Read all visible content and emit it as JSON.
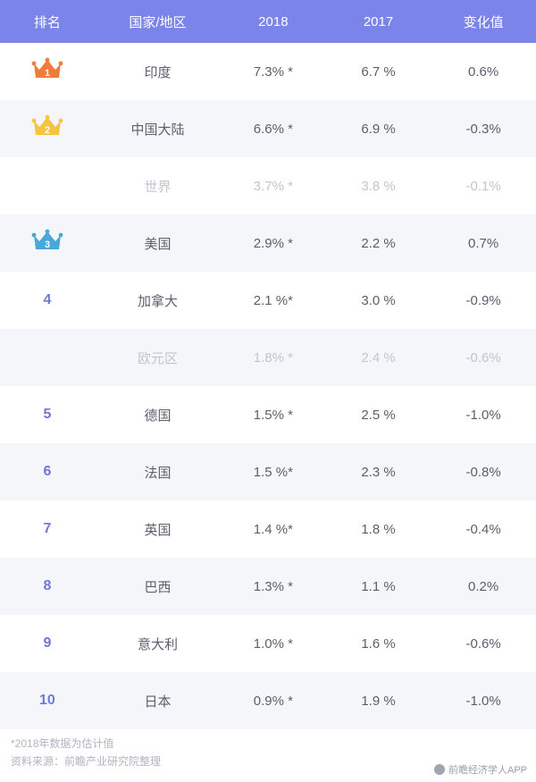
{
  "header": {
    "background_color": "#7b84e8",
    "text_color": "#ffffff",
    "columns": [
      "排名",
      "国家/地区",
      "2018",
      "2017",
      "变化值"
    ]
  },
  "row_style": {
    "even_bg": "#ffffff",
    "odd_bg": "#f5f6fa",
    "text_color": "#5a5f6d",
    "muted_text_color": "#c1c5cf",
    "rank_color": "#6f78d8"
  },
  "crown_colors": {
    "1": "#f07b3c",
    "2": "#f5c542",
    "3": "#4aa8d8"
  },
  "rows": [
    {
      "rank": "1",
      "rank_type": "crown",
      "region": "印度",
      "v2018": "7.3% *",
      "v2017": "6.7 %",
      "delta": "0.6%",
      "muted": false
    },
    {
      "rank": "2",
      "rank_type": "crown",
      "region": "中国大陆",
      "v2018": "6.6% *",
      "v2017": "6.9 %",
      "delta": "-0.3%",
      "muted": false
    },
    {
      "rank": "",
      "rank_type": "none",
      "region": "世界",
      "v2018": "3.7% *",
      "v2017": "3.8 %",
      "delta": "-0.1%",
      "muted": true
    },
    {
      "rank": "3",
      "rank_type": "crown",
      "region": "美国",
      "v2018": "2.9% *",
      "v2017": "2.2 %",
      "delta": "0.7%",
      "muted": false
    },
    {
      "rank": "4",
      "rank_type": "num",
      "region": "加拿大",
      "v2018": "2.1 %*",
      "v2017": "3.0 %",
      "delta": "-0.9%",
      "muted": false
    },
    {
      "rank": "",
      "rank_type": "none",
      "region": "欧元区",
      "v2018": "1.8% *",
      "v2017": "2.4 %",
      "delta": "-0.6%",
      "muted": true
    },
    {
      "rank": "5",
      "rank_type": "num",
      "region": "德国",
      "v2018": "1.5% *",
      "v2017": "2.5 %",
      "delta": "-1.0%",
      "muted": false
    },
    {
      "rank": "6",
      "rank_type": "num",
      "region": "法国",
      "v2018": "1.5 %*",
      "v2017": "2.3 %",
      "delta": "-0.8%",
      "muted": false
    },
    {
      "rank": "7",
      "rank_type": "num",
      "region": "英国",
      "v2018": "1.4 %*",
      "v2017": "1.8 %",
      "delta": "-0.4%",
      "muted": false
    },
    {
      "rank": "8",
      "rank_type": "num",
      "region": "巴西",
      "v2018": "1.3% *",
      "v2017": "1.1 %",
      "delta": "0.2%",
      "muted": false
    },
    {
      "rank": "9",
      "rank_type": "num",
      "region": "意大利",
      "v2018": "1.0% *",
      "v2017": "1.6 %",
      "delta": "-0.6%",
      "muted": false
    },
    {
      "rank": "10",
      "rank_type": "num",
      "region": "日本",
      "v2018": "0.9% *",
      "v2017": "1.9 %",
      "delta": "-1.0%",
      "muted": false
    }
  ],
  "footnotes": {
    "line1": "*2018年数据为估计值",
    "line2": "资料来源：前瞻产业研究院整理"
  },
  "attribution": "前瞻经济学人APP"
}
